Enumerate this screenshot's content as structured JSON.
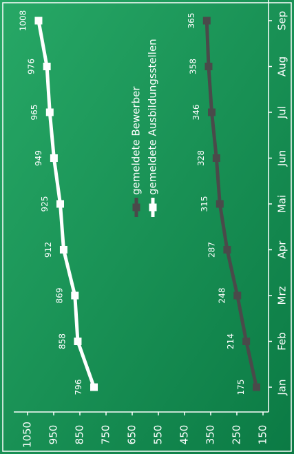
{
  "chart_data": {
    "type": "line",
    "categories": [
      "Jan",
      "Feb",
      "Mrz",
      "Apr",
      "Mai",
      "Jun",
      "Jul",
      "Aug",
      "Sep"
    ],
    "series": [
      {
        "name": "gemeldete Bewerber",
        "color": "#4a4a4a",
        "values": [
          175,
          214,
          248,
          287,
          315,
          328,
          346,
          358,
          365
        ]
      },
      {
        "name": "gemeldete Ausbildungsstellen",
        "color": "#ffffff",
        "values": [
          796,
          858,
          869,
          912,
          925,
          949,
          965,
          976,
          1008
        ]
      }
    ],
    "ylim": [
      150,
      1050
    ],
    "yticks": [
      150,
      250,
      350,
      450,
      550,
      650,
      750,
      850,
      950,
      1050
    ]
  }
}
